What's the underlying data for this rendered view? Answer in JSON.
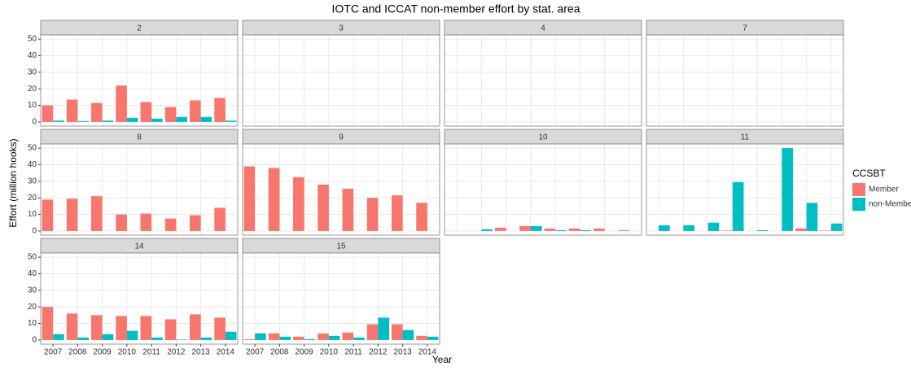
{
  "chart_data": {
    "type": "bar",
    "title": "IOTC and ICCAT non-member effort by stat. area",
    "x_label": "Year",
    "y_label": "Effort (million hooks)",
    "legend_title": "CCSBT",
    "categories": [
      "2007",
      "2008",
      "2009",
      "2010",
      "2011",
      "2012",
      "2013",
      "2014"
    ],
    "series": [
      {
        "name": "Member",
        "color": "#f8766d"
      },
      {
        "name": "non-Member",
        "color": "#00bfc4"
      }
    ],
    "ylim": [
      -2.5,
      52.5
    ],
    "yticks": [
      0,
      10,
      20,
      30,
      40,
      50
    ],
    "grid": true,
    "facets": [
      {
        "label": "2",
        "values": [
          [
            10,
            13.5,
            11.5,
            22,
            12,
            9,
            13,
            14.5
          ],
          [
            0.8,
            0.5,
            0.8,
            2.5,
            2,
            3,
            3,
            0.8
          ]
        ]
      },
      {
        "label": "3",
        "values": [
          [
            null,
            null,
            null,
            null,
            null,
            null,
            null,
            null
          ],
          [
            null,
            null,
            null,
            null,
            null,
            null,
            null,
            null
          ]
        ]
      },
      {
        "label": "4",
        "values": [
          [
            null,
            null,
            null,
            null,
            null,
            null,
            null,
            null
          ],
          [
            null,
            null,
            null,
            null,
            null,
            null,
            null,
            null
          ]
        ]
      },
      {
        "label": "7",
        "values": [
          [
            null,
            null,
            null,
            null,
            null,
            null,
            null,
            null
          ],
          [
            null,
            null,
            null,
            null,
            null,
            null,
            null,
            null
          ]
        ]
      },
      {
        "label": "8",
        "values": [
          [
            19,
            19.5,
            21,
            10,
            10.5,
            7.5,
            9.5,
            14
          ],
          [
            null,
            null,
            null,
            null,
            null,
            null,
            null,
            null
          ]
        ]
      },
      {
        "label": "9",
        "values": [
          [
            39,
            38,
            32.5,
            28,
            25.5,
            20,
            21.5,
            17
          ],
          [
            null,
            null,
            null,
            null,
            null,
            null,
            null,
            null
          ]
        ]
      },
      {
        "label": "10",
        "values": [
          [
            null,
            null,
            2,
            3,
            1.5,
            1.5,
            1.5,
            0.5
          ],
          [
            null,
            1,
            null,
            3,
            0.5,
            0.5,
            null,
            null
          ]
        ]
      },
      {
        "label": "11",
        "values": [
          [
            null,
            null,
            null,
            0.3,
            null,
            null,
            1.5,
            0.3
          ],
          [
            3.5,
            3.5,
            5,
            29.5,
            0.5,
            50,
            17,
            4.5
          ]
        ]
      },
      {
        "label": "14",
        "values": [
          [
            20,
            16,
            15,
            14.5,
            14.5,
            12.5,
            15.5,
            13.5
          ],
          [
            3.5,
            1.5,
            3.5,
            5.5,
            1.5,
            0.3,
            1.5,
            5
          ]
        ]
      },
      {
        "label": "15",
        "values": [
          [
            0.5,
            4,
            2,
            4,
            4.5,
            9.5,
            9.5,
            2.5
          ],
          [
            4,
            2,
            0.5,
            2.5,
            1.5,
            13.5,
            6,
            2
          ]
        ]
      }
    ]
  }
}
